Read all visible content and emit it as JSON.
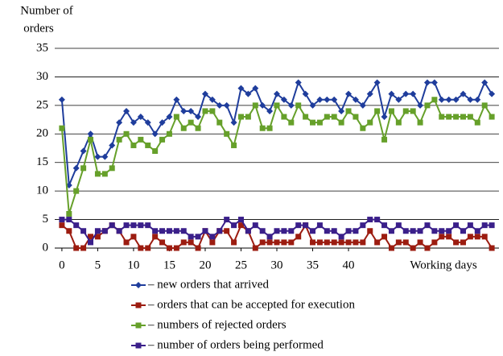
{
  "chart_data": {
    "type": "line",
    "ylabel_lines": [
      "Number of",
      "orders"
    ],
    "xlabel": "Working days",
    "x": [
      0,
      1,
      2,
      3,
      4,
      5,
      6,
      7,
      8,
      9,
      10,
      11,
      12,
      13,
      14,
      15,
      16,
      17,
      18,
      19,
      20,
      21,
      22,
      23,
      24,
      25,
      26,
      27,
      28,
      29,
      30,
      31,
      32,
      33,
      34,
      35,
      36,
      37,
      38,
      39,
      40,
      41,
      42,
      43,
      44,
      45,
      46,
      47,
      48,
      49,
      50,
      51,
      52,
      53,
      54,
      55,
      56,
      57,
      58,
      59,
      60
    ],
    "xlim": [
      -1,
      61
    ],
    "xticks": [
      0,
      5,
      10,
      15,
      20,
      25,
      30,
      35,
      40
    ],
    "ylim": [
      0,
      35
    ],
    "yticks": [
      0,
      5,
      10,
      15,
      20,
      25,
      30,
      35
    ],
    "grid": true,
    "series": [
      {
        "name": "– new orders that arrived",
        "color": "#1f3d9c",
        "marker": "diamond",
        "values": [
          26,
          11,
          14,
          17,
          20,
          16,
          16,
          18,
          22,
          24,
          22,
          23,
          22,
          20,
          22,
          23,
          26,
          24,
          24,
          23,
          27,
          26,
          25,
          25,
          22,
          28,
          27,
          28,
          25,
          24,
          27,
          26,
          25,
          29,
          27,
          25,
          26,
          26,
          26,
          24,
          27,
          26,
          25,
          27,
          29,
          23,
          27,
          26,
          27,
          27,
          25,
          29,
          29,
          26,
          26,
          26,
          27,
          26,
          26,
          29,
          27
        ]
      },
      {
        "name": "– orders that can be accepted for execution",
        "color": "#9c1c10",
        "marker": "square",
        "values": [
          4,
          3,
          0,
          0,
          2,
          2,
          3,
          4,
          3,
          1,
          2,
          0,
          0,
          2,
          1,
          0,
          0,
          1,
          1,
          0,
          3,
          1,
          3,
          3,
          1,
          4,
          3,
          0,
          1,
          1,
          1,
          1,
          1,
          2,
          4,
          1,
          1,
          1,
          1,
          1,
          1,
          1,
          1,
          3,
          1,
          2,
          0,
          1,
          1,
          0,
          1,
          0,
          1,
          2,
          2,
          1,
          1,
          2,
          2,
          2,
          0
        ]
      },
      {
        "name": "– numbers of rejected orders",
        "color": "#66a02a",
        "marker": "square",
        "values": [
          21,
          6,
          10,
          14,
          19,
          13,
          13,
          14,
          19,
          20,
          18,
          19,
          18,
          17,
          19,
          20,
          23,
          21,
          22,
          21,
          24,
          24,
          22,
          20,
          18,
          23,
          23,
          25,
          21,
          21,
          25,
          23,
          22,
          25,
          23,
          22,
          22,
          23,
          23,
          22,
          24,
          23,
          21,
          22,
          24,
          19,
          24,
          22,
          24,
          24,
          22,
          25,
          26,
          23,
          23,
          23,
          23,
          23,
          22,
          25,
          23
        ]
      },
      {
        "name": "– number of orders being performed",
        "color": "#3a1f8a",
        "marker": "square",
        "values": [
          5,
          5,
          4,
          3,
          1,
          3,
          3,
          4,
          3,
          4,
          4,
          4,
          4,
          3,
          3,
          3,
          3,
          3,
          2,
          2,
          3,
          2,
          3,
          5,
          4,
          5,
          3,
          4,
          3,
          2,
          3,
          3,
          3,
          4,
          4,
          3,
          4,
          3,
          3,
          2,
          3,
          3,
          4,
          5,
          5,
          4,
          3,
          4,
          3,
          3,
          3,
          4,
          3,
          3,
          3,
          4,
          3,
          4,
          3,
          4,
          4
        ]
      }
    ]
  }
}
